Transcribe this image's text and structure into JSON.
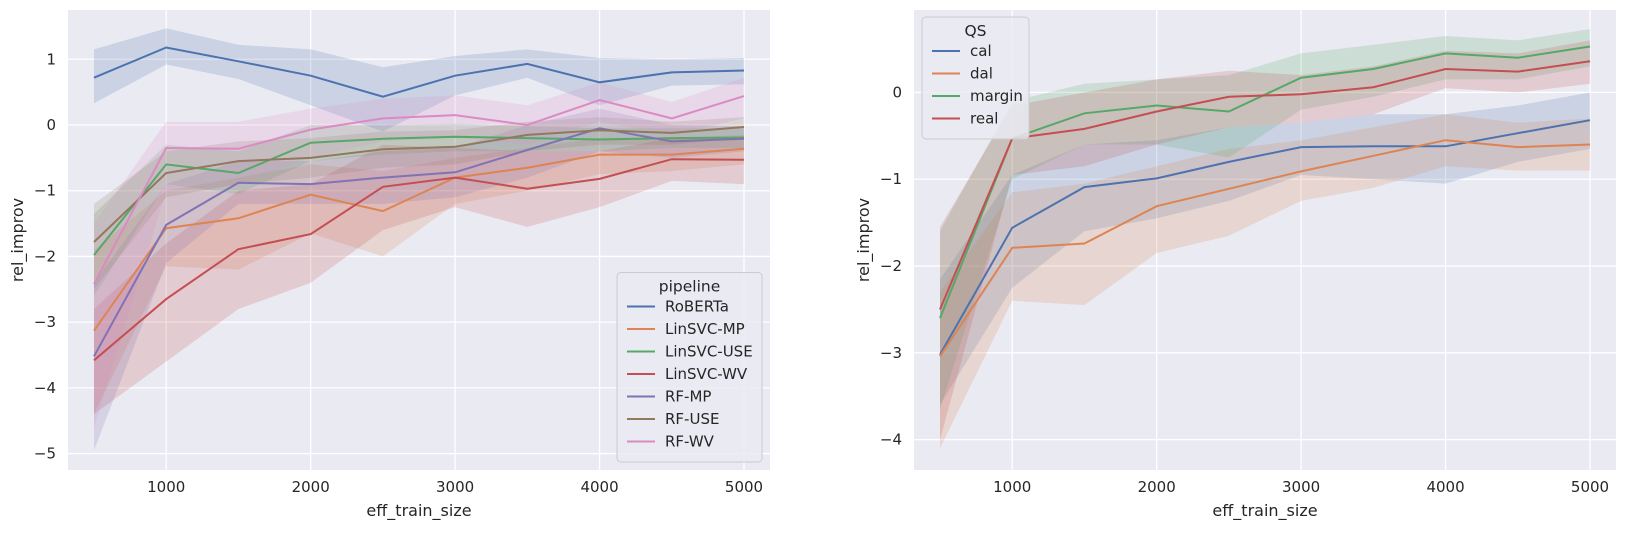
{
  "chart_data": [
    {
      "type": "line",
      "xlabel": "eff_train_size",
      "ylabel": "rel_improv",
      "xlim": [
        320,
        5180
      ],
      "ylim": [
        -5.25,
        1.75
      ],
      "xticks": [
        1000,
        2000,
        3000,
        4000,
        5000
      ],
      "yticks": [
        -5,
        -4,
        -3,
        -2,
        -1,
        0,
        1
      ],
      "grid": true,
      "legend": {
        "title": "pipeline",
        "position": "lower-right"
      },
      "x": [
        500,
        1000,
        1500,
        2000,
        2500,
        3000,
        3500,
        4000,
        4500,
        5000
      ],
      "series": [
        {
          "name": "RoBERTa",
          "color": "#4c72b0",
          "values": [
            0.72,
            1.18,
            0.97,
            0.75,
            0.43,
            0.75,
            0.93,
            0.65,
            0.8,
            0.83
          ],
          "lower": [
            0.33,
            0.92,
            0.7,
            0.3,
            -0.1,
            0.45,
            0.72,
            0.3,
            0.6,
            0.62
          ],
          "upper": [
            1.15,
            1.47,
            1.22,
            1.15,
            0.88,
            1.05,
            1.15,
            1.02,
            1.0,
            1.02
          ]
        },
        {
          "name": "LinSVC-MP",
          "color": "#dd8452",
          "values": [
            -3.13,
            -1.57,
            -1.42,
            -1.06,
            -1.31,
            -0.8,
            -0.65,
            -0.45,
            -0.45,
            -0.36
          ],
          "lower": [
            -4.4,
            -2.15,
            -2.2,
            -1.65,
            -2.0,
            -1.2,
            -1.0,
            -0.75,
            -0.7,
            -0.6
          ],
          "upper": [
            -1.9,
            -1.0,
            -0.8,
            -0.6,
            -0.7,
            -0.5,
            -0.35,
            -0.2,
            -0.2,
            -0.15
          ]
        },
        {
          "name": "LinSVC-USE",
          "color": "#55a868",
          "values": [
            -1.98,
            -0.6,
            -0.73,
            -0.27,
            -0.21,
            -0.18,
            -0.2,
            -0.22,
            -0.2,
            -0.19
          ],
          "lower": [
            -2.6,
            -0.9,
            -1.05,
            -0.55,
            -0.45,
            -0.4,
            -0.4,
            -0.4,
            -0.35,
            -0.35
          ],
          "upper": [
            -1.35,
            -0.3,
            -0.4,
            0.0,
            0.0,
            0.02,
            -0.02,
            -0.05,
            -0.05,
            -0.05
          ]
        },
        {
          "name": "LinSVC-WV",
          "color": "#c44e52",
          "values": [
            -3.58,
            -2.65,
            -1.89,
            -1.66,
            -0.94,
            -0.8,
            -0.97,
            -0.82,
            -0.52,
            -0.53
          ],
          "lower": [
            -4.4,
            -3.6,
            -2.8,
            -2.4,
            -1.6,
            -1.25,
            -1.55,
            -1.25,
            -0.85,
            -0.9
          ],
          "upper": [
            -2.8,
            -1.8,
            -1.0,
            -0.9,
            -0.3,
            -0.35,
            -0.4,
            -0.4,
            -0.2,
            -0.2
          ]
        },
        {
          "name": "RF-MP",
          "color": "#8172b3",
          "values": [
            -3.52,
            -1.52,
            -0.88,
            -0.9,
            -0.8,
            -0.72,
            -0.38,
            -0.05,
            -0.25,
            -0.21
          ],
          "lower": [
            -4.95,
            -2.1,
            -1.2,
            -1.2,
            -1.2,
            -1.1,
            -0.8,
            -0.4,
            -0.5,
            -0.4
          ],
          "upper": [
            -2.4,
            -0.9,
            -0.55,
            -0.55,
            -0.4,
            -0.35,
            0.0,
            0.25,
            0.0,
            -0.02
          ]
        },
        {
          "name": "RF-USE",
          "color": "#937860",
          "values": [
            -1.78,
            -0.73,
            -0.55,
            -0.5,
            -0.37,
            -0.33,
            -0.15,
            -0.08,
            -0.12,
            -0.03
          ],
          "lower": [
            -2.5,
            -1.1,
            -0.9,
            -0.8,
            -0.65,
            -0.6,
            -0.4,
            -0.3,
            -0.3,
            -0.2
          ],
          "upper": [
            -1.2,
            -0.4,
            -0.25,
            -0.2,
            -0.1,
            -0.08,
            0.05,
            0.12,
            0.05,
            0.12
          ]
        },
        {
          "name": "RF-WV",
          "color": "#da8bc3",
          "values": [
            -2.42,
            -0.35,
            -0.36,
            -0.07,
            0.1,
            0.15,
            0.0,
            0.38,
            0.1,
            0.44
          ],
          "lower": [
            -4.6,
            -1.0,
            -0.9,
            -0.5,
            -0.25,
            -0.2,
            -0.3,
            0.05,
            -0.15,
            0.1
          ],
          "upper": [
            -1.5,
            0.05,
            0.05,
            0.25,
            0.4,
            0.45,
            0.3,
            0.65,
            0.35,
            0.72
          ]
        }
      ]
    },
    {
      "type": "line",
      "xlabel": "eff_train_size",
      "ylabel": "rel_improv",
      "xlim": [
        320,
        5180
      ],
      "ylim": [
        -4.35,
        0.95
      ],
      "xticks": [
        1000,
        2000,
        3000,
        4000,
        5000
      ],
      "yticks": [
        -4,
        -3,
        -2,
        -1,
        0
      ],
      "grid": true,
      "legend": {
        "title": "QS",
        "position": "upper-left"
      },
      "x": [
        500,
        1000,
        1500,
        2000,
        2500,
        3000,
        3500,
        4000,
        4500,
        5000
      ],
      "series": [
        {
          "name": "cal",
          "color": "#4c72b0",
          "values": [
            -3.02,
            -1.56,
            -1.09,
            -0.99,
            -0.8,
            -0.63,
            -0.62,
            -0.62,
            -0.47,
            -0.32
          ],
          "lower": [
            -3.6,
            -2.25,
            -1.6,
            -1.45,
            -1.25,
            -0.95,
            -1.0,
            -1.05,
            -0.8,
            -0.65
          ],
          "upper": [
            -2.15,
            -0.95,
            -0.6,
            -0.55,
            -0.4,
            -0.35,
            -0.25,
            -0.25,
            -0.15,
            0.0
          ]
        },
        {
          "name": "dal",
          "color": "#dd8452",
          "values": [
            -3.04,
            -1.79,
            -1.74,
            -1.31,
            -1.11,
            -0.91,
            -0.73,
            -0.55,
            -0.63,
            -0.6
          ],
          "lower": [
            -4.1,
            -2.4,
            -2.45,
            -1.85,
            -1.65,
            -1.25,
            -1.1,
            -0.85,
            -0.9,
            -0.9
          ],
          "upper": [
            -2.3,
            -1.15,
            -1.05,
            -0.85,
            -0.65,
            -0.55,
            -0.4,
            -0.25,
            -0.35,
            -0.3
          ]
        },
        {
          "name": "margin",
          "color": "#55a868",
          "values": [
            -2.6,
            -0.53,
            -0.24,
            -0.15,
            -0.22,
            0.17,
            0.27,
            0.45,
            0.4,
            0.53
          ],
          "lower": [
            -3.65,
            -1.0,
            -0.6,
            -0.6,
            -0.75,
            -0.2,
            -0.05,
            0.15,
            0.15,
            0.3
          ],
          "upper": [
            -1.6,
            -0.1,
            0.1,
            0.15,
            0.2,
            0.45,
            0.55,
            0.65,
            0.6,
            0.73
          ]
        },
        {
          "name": "real",
          "color": "#c44e52",
          "values": [
            -2.5,
            -0.53,
            -0.42,
            -0.22,
            -0.05,
            -0.02,
            0.06,
            0.27,
            0.24,
            0.36
          ],
          "lower": [
            -4.0,
            -0.95,
            -0.85,
            -0.6,
            -0.4,
            -0.35,
            -0.25,
            0.05,
            0.0,
            0.1
          ],
          "upper": [
            -1.55,
            -0.15,
            0.0,
            0.15,
            0.25,
            0.2,
            0.3,
            0.48,
            0.45,
            0.6
          ]
        }
      ]
    }
  ]
}
